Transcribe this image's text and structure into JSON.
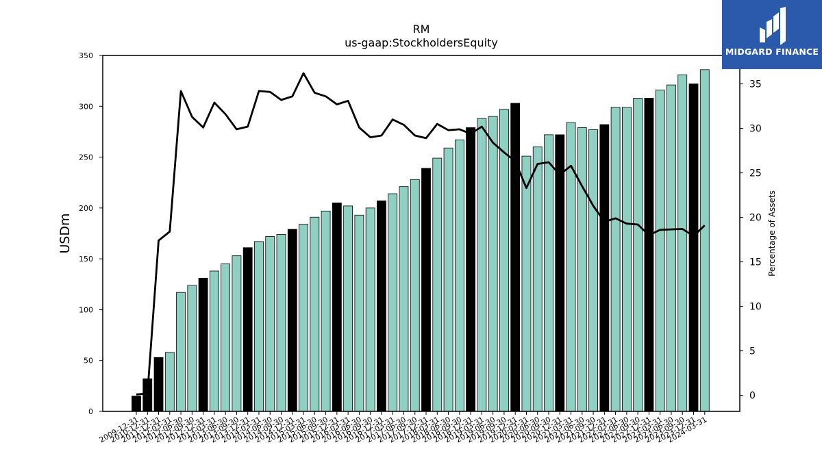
{
  "brand": {
    "name": "MIDGARD FINANCE",
    "color": "#2b5aad"
  },
  "chart_data": {
    "type": "bar",
    "title": "RM",
    "subtitle": "us-gaap:StockholdersEquity",
    "ylabel": "USDm",
    "y2label": "Percentage of Assets",
    "ylim": [
      0,
      350
    ],
    "y2lim": [
      -1.8,
      38.2
    ],
    "yticks": [
      0,
      50,
      100,
      150,
      200,
      250,
      300,
      350
    ],
    "y2ticks": [
      0,
      5,
      10,
      15,
      20,
      25,
      30,
      35
    ],
    "grid": false,
    "colors": {
      "bar": "#8fd0c3",
      "bar_highlight": "#000000",
      "line": "#000000"
    },
    "categories": [
      "2009-12-31",
      "2010-12-31",
      "2011-12-31",
      "2012-03-31",
      "2012-06-30",
      "2012-09-30",
      "2012-12-31",
      "2013-03-31",
      "2013-06-30",
      "2013-09-30",
      "2013-12-31",
      "2014-03-31",
      "2014-06-30",
      "2014-09-30",
      "2014-12-31",
      "2015-03-31",
      "2015-06-30",
      "2015-09-30",
      "2015-12-31",
      "2016-03-31",
      "2016-06-30",
      "2016-09-30",
      "2016-12-31",
      "2017-03-31",
      "2017-06-30",
      "2017-09-30",
      "2017-12-31",
      "2018-03-31",
      "2018-06-30",
      "2018-09-30",
      "2018-12-31",
      "2019-03-31",
      "2019-06-30",
      "2019-09-30",
      "2019-12-31",
      "2020-03-31",
      "2020-06-30",
      "2020-09-30",
      "2020-12-31",
      "2021-03-31",
      "2021-06-30",
      "2021-09-30",
      "2021-12-31",
      "2022-03-31",
      "2022-06-30",
      "2022-09-30",
      "2022-12-31",
      "2023-03-31",
      "2023-06-30",
      "2023-09-30",
      "2023-12-31",
      "2024-03-31"
    ],
    "series": [
      {
        "kind": "bar",
        "axis": "left",
        "values": [
          15,
          32,
          53,
          58,
          117,
          124,
          131,
          138,
          145,
          153,
          161,
          167,
          172,
          174,
          179,
          184,
          191,
          197,
          205,
          202,
          193,
          200,
          207,
          214,
          221,
          228,
          239,
          249,
          259,
          267,
          279,
          288,
          290,
          297,
          303,
          251,
          260,
          272,
          272,
          284,
          279,
          277,
          282,
          299,
          299,
          308,
          308,
          316,
          321,
          331,
          322,
          336
        ],
        "highlight": [
          true,
          true,
          true,
          false,
          false,
          false,
          true,
          false,
          false,
          false,
          true,
          false,
          false,
          false,
          true,
          false,
          false,
          false,
          true,
          false,
          false,
          false,
          true,
          false,
          false,
          false,
          true,
          false,
          false,
          false,
          true,
          false,
          false,
          false,
          true,
          false,
          false,
          false,
          true,
          false,
          false,
          false,
          true,
          false,
          false,
          false,
          true,
          false,
          false,
          false,
          true,
          false
        ]
      },
      {
        "kind": "line",
        "axis": "right",
        "values": [
          0.1,
          0.2,
          17.4,
          18.4,
          34.2,
          31.3,
          30.1,
          32.9,
          31.6,
          29.9,
          30.2,
          34.2,
          34.1,
          33.2,
          33.6,
          36.2,
          34.0,
          33.6,
          32.7,
          33.1,
          30.1,
          29.0,
          29.2,
          31.0,
          30.4,
          29.2,
          28.9,
          30.5,
          29.8,
          29.9,
          29.4,
          30.2,
          28.4,
          27.3,
          26.3,
          23.3,
          26.0,
          26.2,
          24.8,
          25.8,
          23.5,
          21.3,
          19.5,
          19.9,
          19.3,
          19.2,
          18.0,
          18.6,
          18.65,
          18.7,
          17.9,
          19.1
        ]
      }
    ]
  }
}
